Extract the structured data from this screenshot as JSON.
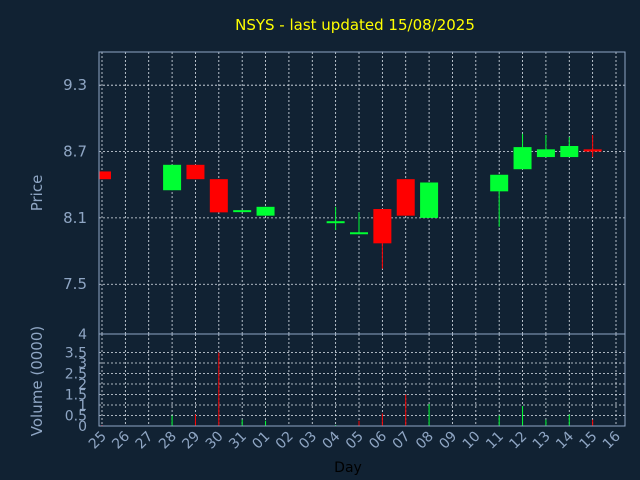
{
  "chart_data": {
    "type": "candlestick",
    "title": "NSYS - last updated 15/08/2025",
    "days": [
      "25",
      "26",
      "27",
      "28",
      "29",
      "30",
      "31",
      "01",
      "02",
      "03",
      "04",
      "05",
      "06",
      "07",
      "08",
      "09",
      "10",
      "11",
      "12",
      "13",
      "14",
      "15",
      "16"
    ],
    "price_panel": {
      "ylabel": "Price",
      "ylim": [
        7.05,
        9.6
      ],
      "yticks": [
        "7.5",
        "8.1",
        "8.7",
        "9.3"
      ],
      "up_color": "#00ff33",
      "down_color": "#ff0000",
      "candles": [
        {
          "day": "25",
          "open": 8.52,
          "close": 8.45,
          "high": 8.52,
          "low": 8.45
        },
        {
          "day": "28",
          "open": 8.35,
          "close": 8.58,
          "high": 8.58,
          "low": 8.35
        },
        {
          "day": "29",
          "open": 8.58,
          "close": 8.45,
          "high": 8.58,
          "low": 8.45
        },
        {
          "day": "30",
          "open": 8.45,
          "close": 8.15,
          "high": 8.45,
          "low": 8.15
        },
        {
          "day": "31",
          "open": 8.16,
          "close": 8.17,
          "high": 8.17,
          "low": 8.16
        },
        {
          "day": "01",
          "open": 8.12,
          "close": 8.2,
          "high": 8.2,
          "low": 8.12
        },
        {
          "day": "04",
          "open": 8.07,
          "close": 8.07,
          "high": 8.2,
          "low": 7.99
        },
        {
          "day": "05",
          "open": 7.97,
          "close": 7.97,
          "high": 8.15,
          "low": 7.97
        },
        {
          "day": "06",
          "open": 8.18,
          "close": 7.87,
          "high": 8.18,
          "low": 7.64
        },
        {
          "day": "07",
          "open": 8.45,
          "close": 8.12,
          "high": 8.45,
          "low": 8.12
        },
        {
          "day": "08",
          "open": 8.1,
          "close": 8.42,
          "high": 8.42,
          "low": 8.1
        },
        {
          "day": "11",
          "open": 8.34,
          "close": 8.49,
          "high": 8.49,
          "low": 8.02
        },
        {
          "day": "12",
          "open": 8.54,
          "close": 8.74,
          "high": 8.86,
          "low": 8.54
        },
        {
          "day": "13",
          "open": 8.65,
          "close": 8.72,
          "high": 8.85,
          "low": 8.65
        },
        {
          "day": "14",
          "open": 8.65,
          "close": 8.75,
          "high": 8.83,
          "low": 8.65
        },
        {
          "day": "15",
          "open": 8.72,
          "close": 8.7,
          "high": 8.85,
          "low": 8.65
        }
      ]
    },
    "volume_panel": {
      "ylabel": "Volume (0000)",
      "ylim": [
        0,
        4
      ],
      "yticks": [
        "0",
        "0.5",
        "1",
        "1.5",
        "2",
        "2.5",
        "3",
        "3.5",
        "4"
      ],
      "bars": [
        {
          "day": "25",
          "value": 0.05,
          "color": "#ff0000"
        },
        {
          "day": "28",
          "value": 0.5,
          "color": "#00ff33"
        },
        {
          "day": "29",
          "value": 0.55,
          "color": "#ff0000"
        },
        {
          "day": "30",
          "value": 3.5,
          "color": "#ff0000"
        },
        {
          "day": "31",
          "value": 0.3,
          "color": "#00ff33"
        },
        {
          "day": "01",
          "value": 0.25,
          "color": "#00ff33"
        },
        {
          "day": "04",
          "value": 0.05,
          "color": "#00ff33"
        },
        {
          "day": "05",
          "value": 0.25,
          "color": "#ff0000"
        },
        {
          "day": "06",
          "value": 0.6,
          "color": "#ff0000"
        },
        {
          "day": "07",
          "value": 1.5,
          "color": "#ff0000"
        },
        {
          "day": "08",
          "value": 1.05,
          "color": "#00ff33"
        },
        {
          "day": "11",
          "value": 0.5,
          "color": "#00ff33"
        },
        {
          "day": "12",
          "value": 0.95,
          "color": "#00ff33"
        },
        {
          "day": "13",
          "value": 0.3,
          "color": "#00ff33"
        },
        {
          "day": "14",
          "value": 0.55,
          "color": "#00ff33"
        },
        {
          "day": "15",
          "value": 0.3,
          "color": "#ff0000"
        }
      ]
    },
    "xlabel": "Day",
    "grid": true
  }
}
